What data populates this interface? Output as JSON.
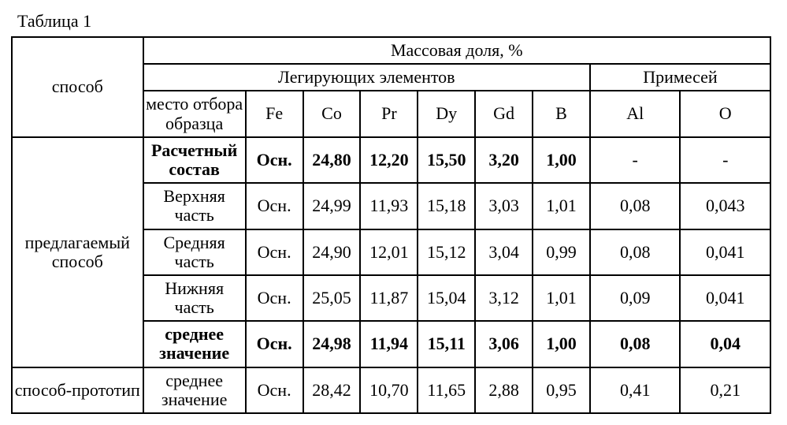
{
  "table_title": "Таблица 1",
  "headers": {
    "method": "способ",
    "mass_fraction": "Массовая доля, %",
    "alloying": "Легирующих элементов",
    "impurities": "Примесей",
    "sample_place": "место отбора образца",
    "Fe": "Fe",
    "Co": "Co",
    "Pr": "Pr",
    "Dy": "Dy",
    "Gd": "Gd",
    "B": "B",
    "Al": "Al",
    "O": "O"
  },
  "method1": "предлагаемый способ",
  "method2": "способ-прототип",
  "rows": {
    "r1": {
      "sample": "Расчетный состав",
      "Fe": "Осн.",
      "Co": "24,80",
      "Pr": "12,20",
      "Dy": "15,50",
      "Gd": "3,20",
      "B": "1,00",
      "Al": "-",
      "O": "-"
    },
    "r2": {
      "sample": "Верхняя часть",
      "Fe": "Осн.",
      "Co": "24,99",
      "Pr": "11,93",
      "Dy": "15,18",
      "Gd": "3,03",
      "B": "1,01",
      "Al": "0,08",
      "O": "0,043"
    },
    "r3": {
      "sample": "Средняя часть",
      "Fe": "Осн.",
      "Co": "24,90",
      "Pr": "12,01",
      "Dy": "15,12",
      "Gd": "3,04",
      "B": "0,99",
      "Al": "0,08",
      "O": "0,041"
    },
    "r4": {
      "sample": "Нижняя часть",
      "Fe": "Осн.",
      "Co": "25,05",
      "Pr": "11,87",
      "Dy": "15,04",
      "Gd": "3,12",
      "B": "1,01",
      "Al": "0,09",
      "O": "0,041"
    },
    "r5": {
      "sample": "среднее значение",
      "Fe": "Осн.",
      "Co": "24,98",
      "Pr": "11,94",
      "Dy": "15,11",
      "Gd": "3,06",
      "B": "1,00",
      "Al": "0,08",
      "O": "0,04"
    },
    "r6": {
      "sample": "среднее значение",
      "Fe": "Осн.",
      "Co": "28,42",
      "Pr": "10,70",
      "Dy": "11,65",
      "Gd": "2,88",
      "B": "0,95",
      "Al": "0,41",
      "O": "0,21"
    }
  }
}
